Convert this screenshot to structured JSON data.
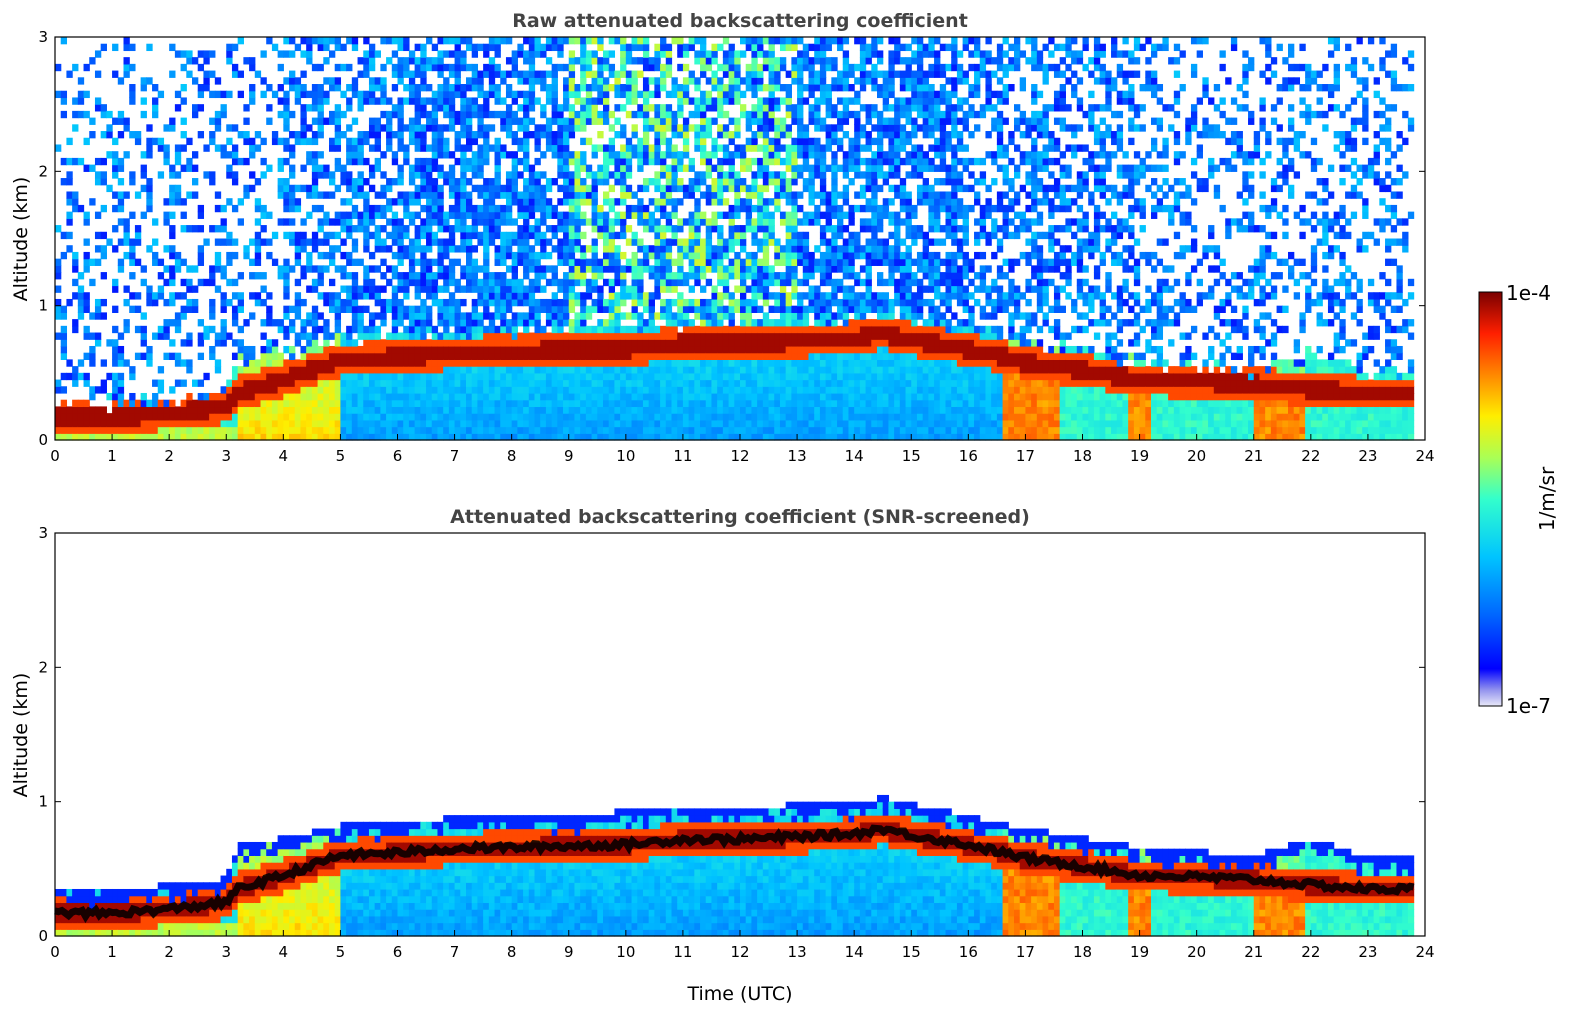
{
  "chart_data": [
    {
      "type": "heatmap",
      "title": "Raw attenuated backscattering coefficient",
      "xlabel": "",
      "ylabel": "Altitude (km)",
      "xlim": [
        0,
        24
      ],
      "ylim": [
        0,
        3
      ],
      "x_ticks": [
        0,
        1,
        2,
        3,
        4,
        5,
        6,
        7,
        8,
        9,
        10,
        11,
        12,
        13,
        14,
        15,
        16,
        17,
        18,
        19,
        20,
        21,
        22,
        23,
        24
      ],
      "y_ticks": [
        0,
        1,
        2,
        3
      ],
      "screened": false,
      "layer_top_km": [
        [
          0,
          0.27
        ],
        [
          1,
          0.27
        ],
        [
          2,
          0.3
        ],
        [
          3,
          0.35
        ],
        [
          3.2,
          0.6
        ],
        [
          4,
          0.65
        ],
        [
          5,
          0.75
        ],
        [
          6,
          0.78
        ],
        [
          7,
          0.8
        ],
        [
          8,
          0.82
        ],
        [
          9,
          0.83
        ],
        [
          10,
          0.85
        ],
        [
          11,
          0.88
        ],
        [
          12,
          0.88
        ],
        [
          13,
          0.9
        ],
        [
          14,
          0.92
        ],
        [
          14.5,
          0.95
        ],
        [
          15,
          0.9
        ],
        [
          16,
          0.82
        ],
        [
          17,
          0.72
        ],
        [
          18,
          0.65
        ],
        [
          19,
          0.58
        ],
        [
          20,
          0.55
        ],
        [
          21,
          0.52
        ],
        [
          22,
          0.65
        ],
        [
          23,
          0.5
        ],
        [
          23.8,
          0.5
        ]
      ],
      "max_backscatter_altitude_km": [
        [
          0,
          0.17
        ],
        [
          1,
          0.17
        ],
        [
          2,
          0.2
        ],
        [
          3,
          0.25
        ],
        [
          3.2,
          0.35
        ],
        [
          4,
          0.45
        ],
        [
          5,
          0.6
        ],
        [
          6,
          0.62
        ],
        [
          7,
          0.65
        ],
        [
          8,
          0.66
        ],
        [
          9,
          0.67
        ],
        [
          10,
          0.68
        ],
        [
          11,
          0.72
        ],
        [
          12,
          0.72
        ],
        [
          13,
          0.74
        ],
        [
          14,
          0.76
        ],
        [
          14.5,
          0.8
        ],
        [
          15,
          0.75
        ],
        [
          16,
          0.68
        ],
        [
          17,
          0.58
        ],
        [
          18,
          0.52
        ],
        [
          19,
          0.45
        ],
        [
          20,
          0.44
        ],
        [
          21,
          0.42
        ],
        [
          22,
          0.38
        ],
        [
          23,
          0.35
        ],
        [
          23.8,
          0.35
        ]
      ],
      "surface_maxima": [
        {
          "start": 16.6,
          "end": 17.6
        },
        {
          "start": 18.8,
          "end": 19.2
        },
        {
          "start": 21.0,
          "end": 21.9
        }
      ],
      "data_end_hour": 23.8
    },
    {
      "type": "heatmap",
      "title": "Attenuated backscattering coefficient (SNR-screened)",
      "xlabel": "Time (UTC)",
      "ylabel": "Altitude (km)",
      "xlim": [
        0,
        24
      ],
      "ylim": [
        0,
        3
      ],
      "x_ticks": [
        0,
        1,
        2,
        3,
        4,
        5,
        6,
        7,
        8,
        9,
        10,
        11,
        12,
        13,
        14,
        15,
        16,
        17,
        18,
        19,
        20,
        21,
        22,
        23,
        24
      ],
      "y_ticks": [
        0,
        1,
        2,
        3
      ],
      "screened": true
    }
  ],
  "colorbar": {
    "max_label": "1e-4",
    "min_label": "1e-7",
    "unit_label": "1/m/sr",
    "scale": "log",
    "range": [
      1e-07,
      0.0001
    ]
  }
}
